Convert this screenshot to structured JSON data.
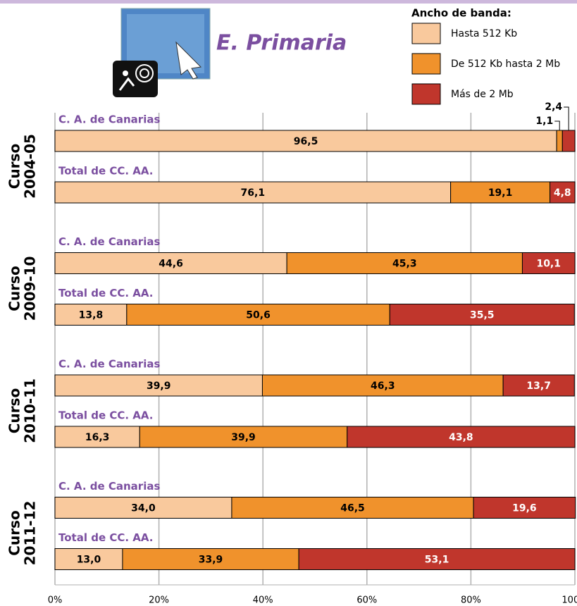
{
  "chart_data": {
    "type": "stacked-bar-horizontal",
    "title": "E. Primaria",
    "legend_title": "Ancho de banda:",
    "group_titles": [
      [
        "Curso",
        "2004-05"
      ],
      [
        "Curso",
        "2009-10"
      ],
      [
        "Curso",
        "2010-11"
      ],
      [
        "Curso",
        "2011-12"
      ]
    ],
    "categories": [
      "C. A. de Canarias",
      "Total de CC. AA.",
      "C. A. de Canarias",
      "Total de CC. AA.",
      "C. A. de Canarias",
      "Total de CC. AA.",
      "C. A. de Canarias",
      "Total de CC. AA."
    ],
    "series": [
      {
        "name": "Hasta 512 Kb",
        "color": "#f9c99d",
        "values": [
          96.5,
          76.1,
          44.6,
          13.8,
          39.9,
          16.3,
          34.0,
          13.0
        ],
        "value_labels": [
          "96,5",
          "76,1",
          "44,6",
          "13,8",
          "39,9",
          "16,3",
          "34,0",
          "13,0"
        ]
      },
      {
        "name": "De 512 Kb hasta 2 Mb",
        "color": "#f0922c",
        "values": [
          1.1,
          19.1,
          45.3,
          50.6,
          46.3,
          39.9,
          46.5,
          33.9
        ],
        "value_labels": [
          "1,1",
          "19,1",
          "45,3",
          "50,6",
          "46,3",
          "39,9",
          "46,5",
          "33,9"
        ]
      },
      {
        "name": "Más de 2 Mb",
        "color": "#c0362c",
        "values": [
          2.4,
          4.8,
          10.1,
          35.5,
          13.7,
          43.8,
          19.6,
          53.1
        ],
        "value_labels": [
          "2,4",
          "4,8",
          "10,1",
          "35,5",
          "13,7",
          "43,8",
          "19,6",
          "53,1"
        ]
      }
    ],
    "xlim": [
      0,
      100
    ],
    "xticks": [
      {
        "value": 0,
        "label": "0%"
      },
      {
        "value": 20,
        "label": "20%"
      },
      {
        "value": 40,
        "label": "40%"
      },
      {
        "value": 60,
        "label": "60%"
      },
      {
        "value": 80,
        "label": "80%"
      },
      {
        "value": 100,
        "label": "100%"
      }
    ],
    "grid": true
  }
}
